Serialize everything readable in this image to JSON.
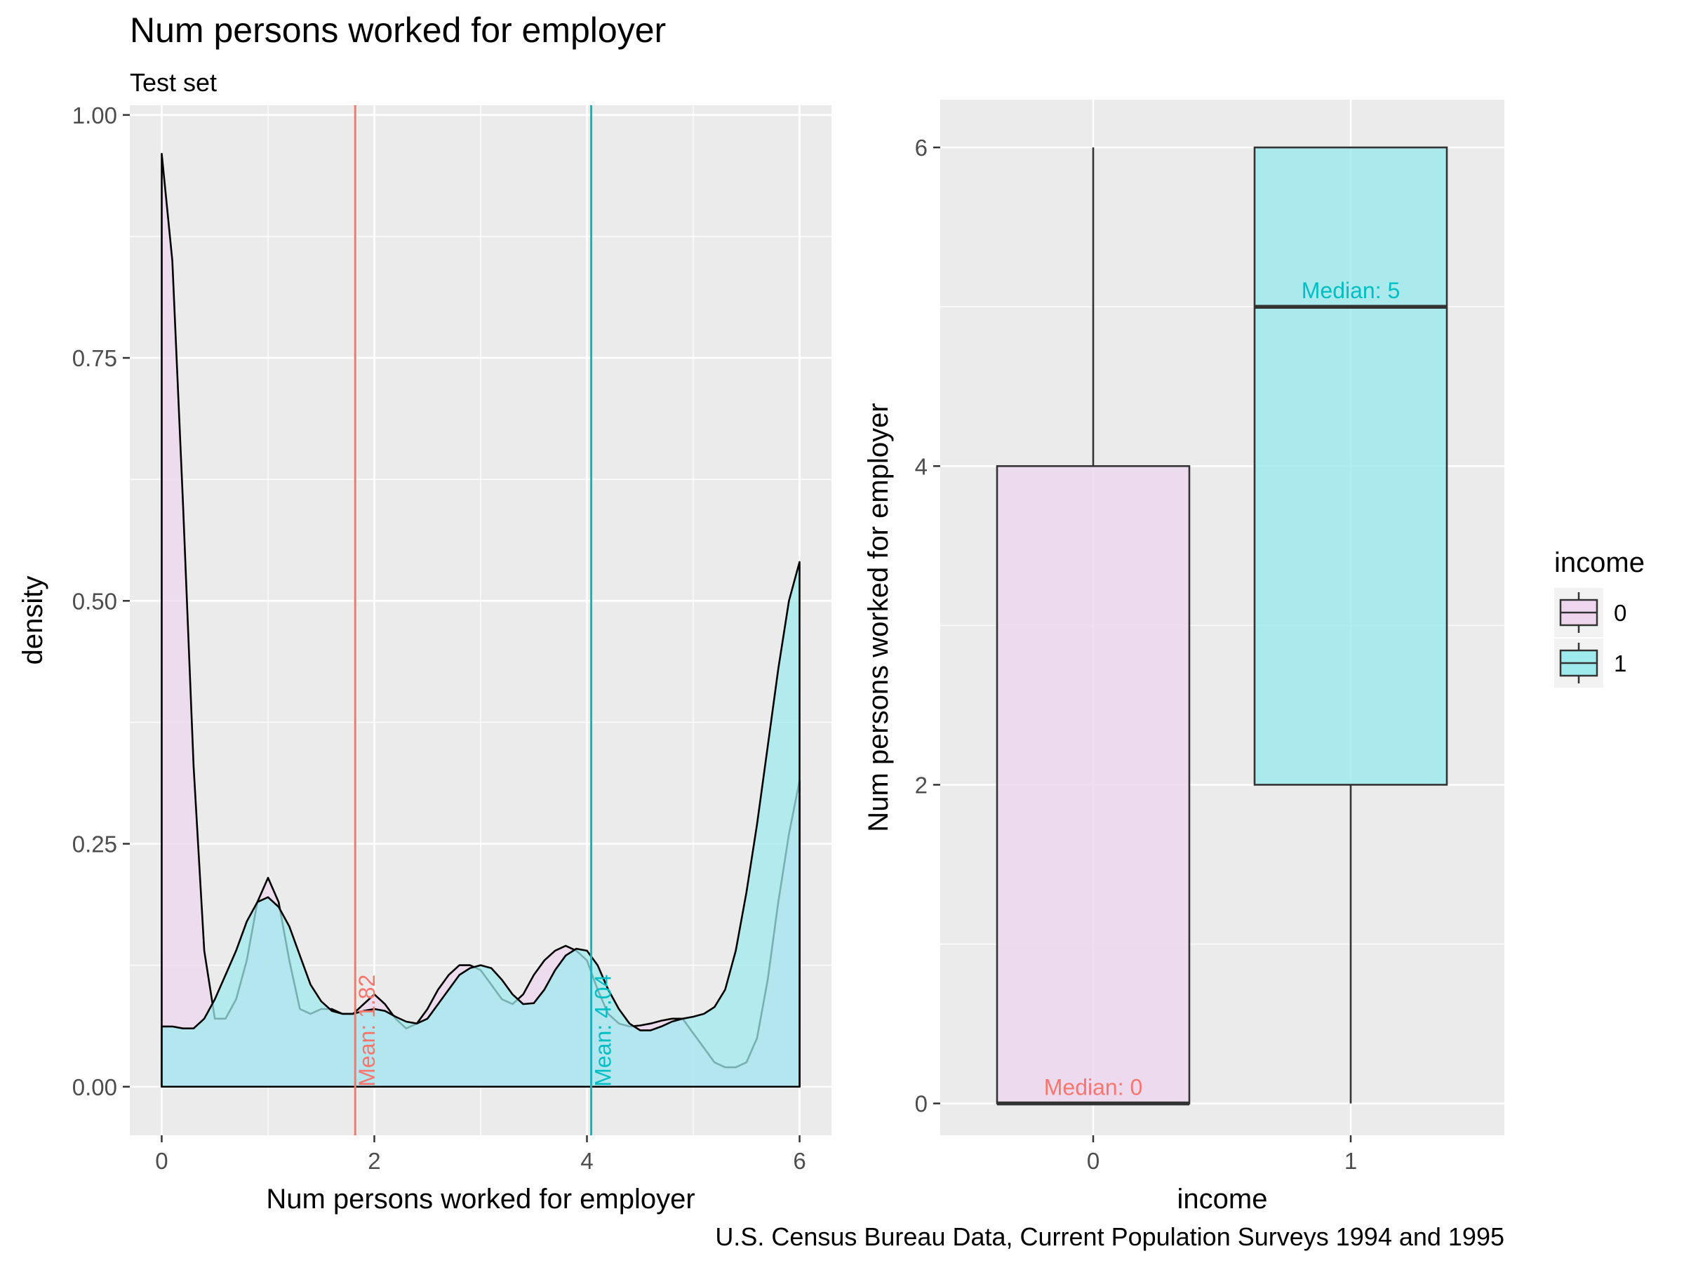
{
  "figure": {
    "title": "Num persons worked for employer",
    "subtitle": "Test set",
    "caption": "U.S. Census Bureau Data, Current Population Surveys 1994 and 1995"
  },
  "colors": {
    "panel_bg": "#EBEBEB",
    "grid": "#FFFFFF",
    "income0_line": "#F8766D",
    "income1_line": "#00BFC4",
    "income0_fill": "#EED7EE",
    "income1_fill": "#9FEAED",
    "income1_dense_fill": "#A9E6F2",
    "axis_text": "#4D4D4D",
    "outline": "#000000"
  },
  "legend": {
    "title": "income",
    "items": [
      {
        "label": "0",
        "fill": "#EED7EE"
      },
      {
        "label": "1",
        "fill": "#9FEAED"
      }
    ]
  },
  "chart_data": [
    {
      "type": "area",
      "name": "density-plot",
      "xlabel": "Num persons worked for employer",
      "ylabel": "density",
      "xlim": [
        -0.3,
        6.3
      ],
      "ylim": [
        -0.05,
        1.01
      ],
      "xticks": [
        0,
        2,
        4,
        6
      ],
      "xtick_labels": [
        "0",
        "2",
        "4",
        "6"
      ],
      "yticks": [
        0,
        0.25,
        0.5,
        0.75,
        1.0
      ],
      "ytick_labels": [
        "0.00",
        "0.25",
        "0.50",
        "0.75",
        "1.00"
      ],
      "grid": true,
      "series": [
        {
          "name": "income 0",
          "x": [
            0,
            0.1,
            0.2,
            0.3,
            0.4,
            0.5,
            0.6,
            0.7,
            0.8,
            0.9,
            1.0,
            1.1,
            1.2,
            1.3,
            1.4,
            1.5,
            1.6,
            1.7,
            1.8,
            1.9,
            2.0,
            2.1,
            2.2,
            2.3,
            2.4,
            2.5,
            2.6,
            2.7,
            2.8,
            2.9,
            3.0,
            3.1,
            3.2,
            3.3,
            3.4,
            3.5,
            3.6,
            3.7,
            3.8,
            3.9,
            4.0,
            4.1,
            4.2,
            4.3,
            4.4,
            4.5,
            4.6,
            4.7,
            4.8,
            4.9,
            5.0,
            5.1,
            5.2,
            5.3,
            5.4,
            5.5,
            5.6,
            5.7,
            5.8,
            5.9,
            6.0
          ],
          "y": [
            0.96,
            0.85,
            0.6,
            0.33,
            0.14,
            0.07,
            0.07,
            0.09,
            0.13,
            0.19,
            0.215,
            0.19,
            0.13,
            0.08,
            0.075,
            0.08,
            0.08,
            0.075,
            0.075,
            0.085,
            0.095,
            0.085,
            0.07,
            0.06,
            0.065,
            0.08,
            0.1,
            0.115,
            0.125,
            0.125,
            0.12,
            0.105,
            0.09,
            0.085,
            0.095,
            0.115,
            0.13,
            0.14,
            0.145,
            0.14,
            0.13,
            0.1,
            0.075,
            0.065,
            0.062,
            0.063,
            0.065,
            0.068,
            0.07,
            0.07,
            0.055,
            0.04,
            0.025,
            0.02,
            0.02,
            0.025,
            0.05,
            0.11,
            0.19,
            0.26,
            0.315
          ],
          "fill": "#EED7EE"
        },
        {
          "name": "income 1",
          "x": [
            0,
            0.1,
            0.2,
            0.3,
            0.4,
            0.5,
            0.6,
            0.7,
            0.8,
            0.9,
            1.0,
            1.1,
            1.2,
            1.3,
            1.4,
            1.5,
            1.6,
            1.7,
            1.8,
            1.9,
            2.0,
            2.1,
            2.2,
            2.3,
            2.4,
            2.5,
            2.6,
            2.7,
            2.8,
            2.9,
            3.0,
            3.1,
            3.2,
            3.3,
            3.4,
            3.5,
            3.6,
            3.7,
            3.8,
            3.9,
            4.0,
            4.1,
            4.2,
            4.3,
            4.4,
            4.5,
            4.6,
            4.7,
            4.8,
            4.9,
            5.0,
            5.1,
            5.2,
            5.3,
            5.4,
            5.5,
            5.6,
            5.7,
            5.8,
            5.9,
            6.0
          ],
          "y": [
            0.062,
            0.062,
            0.06,
            0.06,
            0.07,
            0.09,
            0.115,
            0.14,
            0.17,
            0.19,
            0.195,
            0.185,
            0.165,
            0.135,
            0.105,
            0.088,
            0.078,
            0.075,
            0.075,
            0.078,
            0.08,
            0.078,
            0.072,
            0.067,
            0.065,
            0.07,
            0.085,
            0.1,
            0.115,
            0.122,
            0.125,
            0.122,
            0.11,
            0.095,
            0.085,
            0.086,
            0.1,
            0.12,
            0.135,
            0.142,
            0.14,
            0.125,
            0.1,
            0.08,
            0.065,
            0.058,
            0.058,
            0.062,
            0.067,
            0.07,
            0.072,
            0.075,
            0.082,
            0.1,
            0.14,
            0.2,
            0.27,
            0.35,
            0.43,
            0.5,
            0.54
          ],
          "fill": "#9FEAED"
        }
      ],
      "annotations": [
        {
          "label": "Mean: 1.82",
          "x": 1.82,
          "color": "#F8766D"
        },
        {
          "label": "Mean: 4.04",
          "x": 4.04,
          "color": "#00BFC4"
        }
      ]
    },
    {
      "type": "boxplot",
      "name": "box-plot",
      "xlabel": "income",
      "ylabel": "Num persons worked for employer",
      "categories": [
        "0",
        "1"
      ],
      "ylim": [
        -0.2,
        6.3
      ],
      "yticks": [
        0,
        2,
        4,
        6
      ],
      "ytick_labels": [
        "0",
        "2",
        "4",
        "6"
      ],
      "grid": true,
      "boxes": [
        {
          "category": "0",
          "min": 0,
          "q1": 0,
          "median": 0,
          "q3": 4,
          "max": 6,
          "fill": "#EED7EE",
          "label": "Median: 0",
          "label_color": "#F8766D"
        },
        {
          "category": "1",
          "min": 0,
          "q1": 2,
          "median": 5,
          "q3": 6,
          "max": 6,
          "fill": "#9FEAED",
          "label": "Median: 5",
          "label_color": "#00BFC4"
        }
      ]
    }
  ]
}
